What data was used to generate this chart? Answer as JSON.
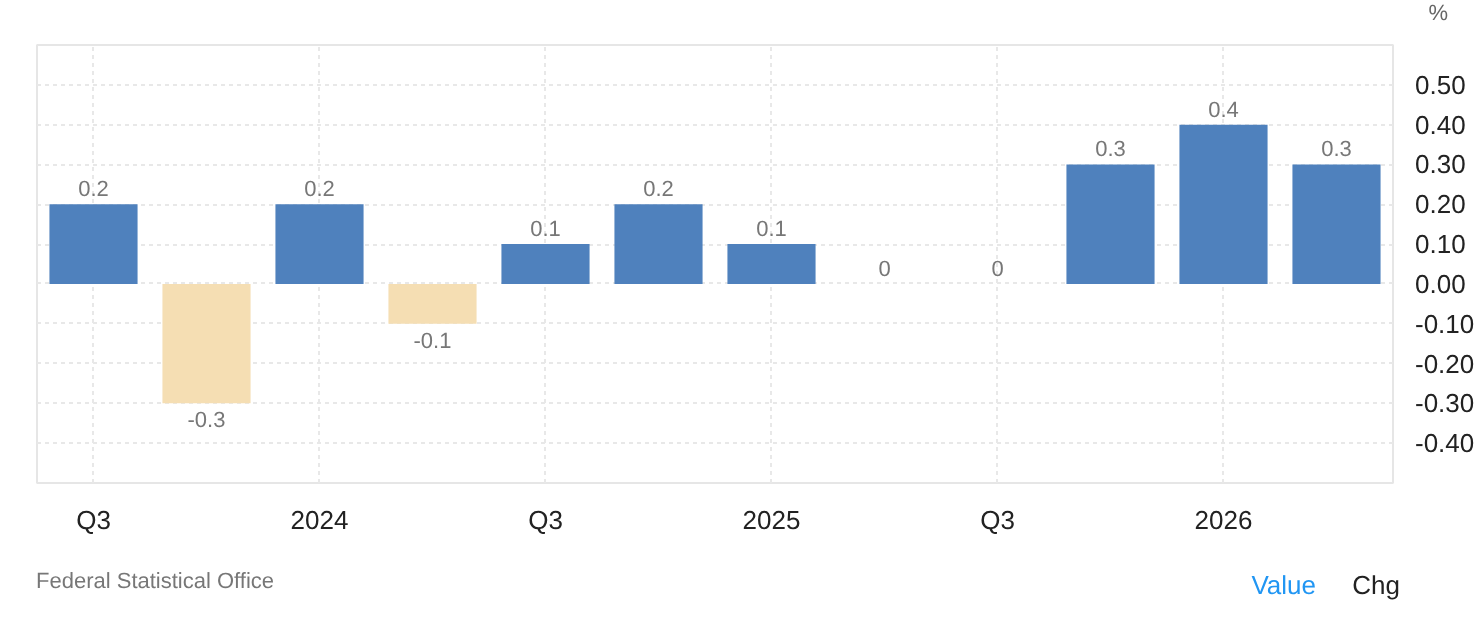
{
  "chart_data": {
    "type": "bar",
    "categories": [
      "Q3",
      null,
      "2024",
      null,
      "Q3",
      null,
      "2025",
      null,
      "Q3",
      null,
      "2026",
      null
    ],
    "values": [
      0.2,
      -0.3,
      0.2,
      -0.1,
      0.1,
      0.2,
      0.1,
      0,
      0,
      0.3,
      0.4,
      0.3
    ],
    "colors": [
      "#4f81bd",
      "#f5deb3",
      "#4f81bd",
      "#f5deb3",
      "#4f81bd",
      "#4f81bd",
      "#4f81bd",
      "#4f81bd",
      "#4f81bd",
      "#4f81bd",
      "#4f81bd",
      "#4f81bd"
    ],
    "data_labels": true,
    "ylabel": "%",
    "ylim": [
      -0.5,
      0.6
    ],
    "yticks": [
      {
        "value": 0.5,
        "label": "0.50"
      },
      {
        "value": 0.4,
        "label": "0.40"
      },
      {
        "value": 0.3,
        "label": "0.30"
      },
      {
        "value": 0.2,
        "label": "0.20"
      },
      {
        "value": 0.1,
        "label": "0.10"
      },
      {
        "value": 0,
        "label": "0.00"
      },
      {
        "value": -0.1,
        "label": "-0.10"
      },
      {
        "value": -0.2,
        "label": "-0.20"
      },
      {
        "value": -0.3,
        "label": "-0.30"
      },
      {
        "value": -0.4,
        "label": "-0.40"
      }
    ],
    "grid": true,
    "annotations": [
      "Federal Statistical Office",
      "Value",
      "Chg"
    ]
  }
}
